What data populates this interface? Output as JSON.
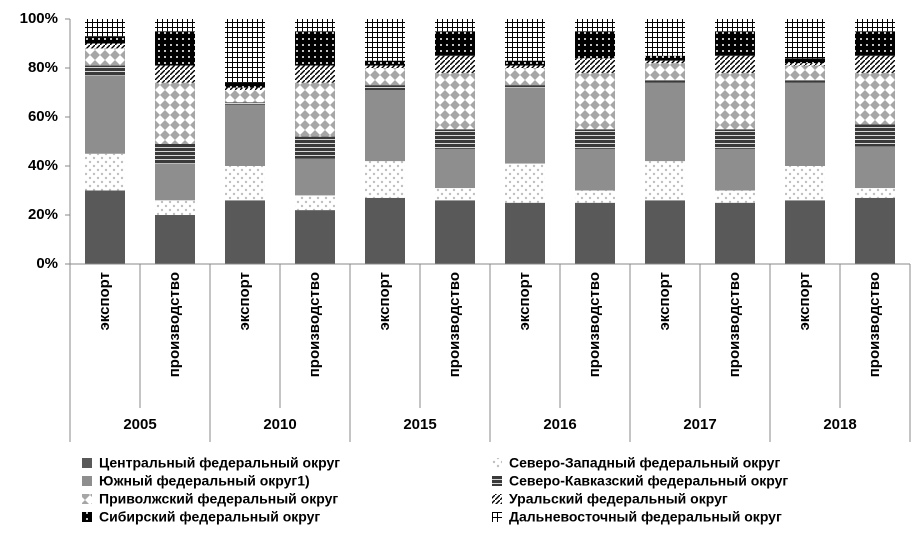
{
  "chart_data": {
    "type": "stacked-bar-100",
    "groups": [
      "2005",
      "2010",
      "2015",
      "2016",
      "2017",
      "2018"
    ],
    "categories": [
      "экспорт",
      "производство",
      "экспорт",
      "производство",
      "экспорт",
      "производство",
      "экспорт",
      "производство",
      "экспорт",
      "производство",
      "экспорт",
      "производство"
    ],
    "series": [
      {
        "name": "Центральный федеральный округ",
        "color": "#595959",
        "pattern": "solid",
        "values": [
          30,
          20,
          26,
          22,
          27,
          26,
          25,
          25,
          26,
          25,
          26,
          27
        ]
      },
      {
        "name": "Северо-Западный федеральный округ",
        "color": "#bfbfbf",
        "pattern": "sparse-dots",
        "values": [
          15,
          6,
          14,
          6,
          15,
          5,
          16,
          5,
          16,
          5,
          14,
          4
        ]
      },
      {
        "name": "Южный федеральный округ1)",
        "color": "#8e8e8e",
        "pattern": "solid",
        "values": [
          32,
          15,
          25,
          15,
          29,
          16,
          31,
          17,
          32,
          17,
          34,
          17
        ]
      },
      {
        "name": "Северо-Кавказский федеральный округ",
        "color": "#3a3a3a",
        "pattern": "brick",
        "values": [
          4,
          8,
          1,
          9,
          2,
          8,
          1,
          8,
          1,
          8,
          1,
          9
        ]
      },
      {
        "name": "Приволжский федеральный округ",
        "color": "#a6a6a6",
        "pattern": "diamonds",
        "values": [
          7,
          25,
          5,
          22,
          7,
          23,
          7,
          23,
          7,
          23,
          6,
          21
        ]
      },
      {
        "name": "Уральский федеральный округ",
        "color": "#000000",
        "pattern": "hatch",
        "values": [
          2,
          7,
          1,
          7,
          1,
          7,
          1,
          6,
          1,
          7,
          1,
          7
        ]
      },
      {
        "name": "Сибирский федеральный округ",
        "color": "#000000",
        "pattern": "dots",
        "values": [
          3,
          14,
          2,
          14,
          2,
          10,
          2,
          11,
          2,
          10,
          2,
          10
        ]
      },
      {
        "name": "Дальневосточный федеральный округ",
        "color": "#000000",
        "pattern": "cross",
        "values": [
          7,
          5,
          26,
          5,
          17,
          5,
          17,
          5,
          15,
          5,
          16,
          5
        ]
      }
    ],
    "ylim": [
      0,
      100
    ],
    "yticks": [
      {
        "value": 0,
        "label": "0%"
      },
      {
        "value": 20,
        "label": "20%"
      },
      {
        "value": 40,
        "label": "40%"
      },
      {
        "value": 60,
        "label": "60%"
      },
      {
        "value": 80,
        "label": "80%"
      },
      {
        "value": 100,
        "label": "100%"
      }
    ],
    "grid": false,
    "legend": "bottom"
  }
}
